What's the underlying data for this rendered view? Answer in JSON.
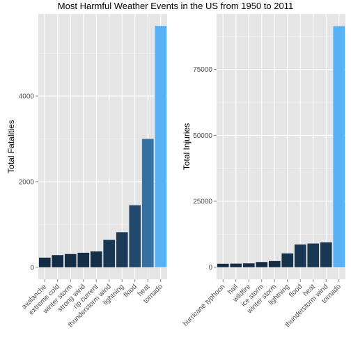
{
  "title": "Most Harmful Weather Events in the US from 1950 to 2011",
  "chart_data": [
    {
      "type": "bar",
      "ylabel": "Total Fatalities",
      "xlabel": "",
      "categories": [
        "avalanche",
        "extreme cold",
        "winter storm",
        "strong wind",
        "rip current",
        "thunderstorm wind",
        "lightning",
        "flood",
        "heat",
        "tornado"
      ],
      "values": [
        225,
        285,
        310,
        340,
        370,
        640,
        820,
        1450,
        3000,
        5640
      ],
      "ylim": [
        -280,
        5920
      ],
      "yticks": [
        0,
        2000,
        4000
      ],
      "ytick_labels": [
        "0",
        "2000",
        "4000"
      ],
      "grid": true,
      "legend": "none",
      "color_low": "#132B43",
      "color_high": "#56B1F7"
    },
    {
      "type": "bar",
      "ylabel": "Total Injuries",
      "xlabel": "",
      "categories": [
        "hurricane typhoon",
        "hail",
        "wildfire",
        "ice storm",
        "winter storm",
        "lightning",
        "flood",
        "heat",
        "thunderstorm wind",
        "tornado"
      ],
      "values": [
        1300,
        1360,
        1460,
        1975,
        2350,
        5230,
        8600,
        9000,
        9400,
        91350
      ],
      "ylim": [
        -4560,
        96000
      ],
      "yticks": [
        0,
        25000,
        50000,
        75000
      ],
      "ytick_labels": [
        "0",
        "25000",
        "50000",
        "75000"
      ],
      "grid": true,
      "legend": "none",
      "color_low": "#132B43",
      "color_high": "#56B1F7"
    }
  ]
}
